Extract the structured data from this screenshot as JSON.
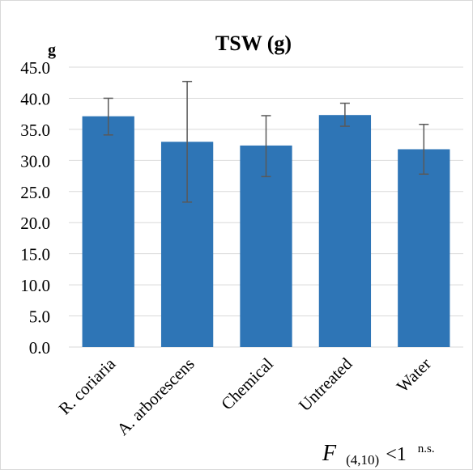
{
  "chart_data": {
    "type": "bar",
    "title": "TSW (g)",
    "ylabel": "g",
    "ylim": [
      0,
      45
    ],
    "yticks": [
      "0.0",
      "5.0",
      "10.0",
      "15.0",
      "20.0",
      "25.0",
      "30.0",
      "35.0",
      "40.0",
      "45.0"
    ],
    "categories": [
      "R. coriaria",
      "A. arborescens",
      "Chemical",
      "Untreated",
      "Water"
    ],
    "values": [
      37.1,
      33.0,
      32.4,
      37.3,
      31.8
    ],
    "error_low": [
      34.1,
      23.3,
      27.4,
      35.5,
      27.8
    ],
    "error_high": [
      40.0,
      42.7,
      37.2,
      39.2,
      35.8
    ],
    "grid": true,
    "bar_color": "#2e75b6",
    "grid_color": "#d9d9d9",
    "error_color": "#595959"
  },
  "annotation": {
    "stat": "F",
    "subscript": "(4,10)",
    "relation": "<1",
    "superscript": "n.s."
  }
}
